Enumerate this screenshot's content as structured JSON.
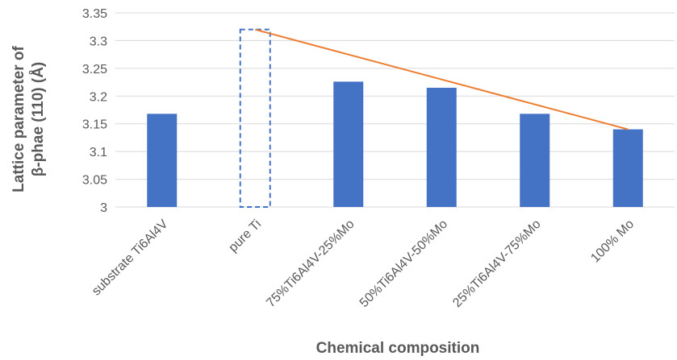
{
  "chart_data": {
    "type": "bar",
    "title": "",
    "xlabel": "Chemical composition",
    "ylabel_lines": [
      "Lattice parameter of",
      "β-phae (110) (Å)"
    ],
    "categories": [
      "substrate Ti6Al4V",
      "pure Ti",
      "75%Ti6Al4V-25%Mo",
      "50%Ti6Al4V-50%Mo",
      "25%Ti6Al4V-75%Mo",
      "100% Mo"
    ],
    "values": [
      3.168,
      3.32,
      3.226,
      3.215,
      3.168,
      3.14
    ],
    "bar_styles": [
      "solid",
      "dashed",
      "solid",
      "solid",
      "solid",
      "solid"
    ],
    "trend_line": {
      "from_category": "pure Ti",
      "from_value": 3.32,
      "to_category": "100% Mo",
      "to_value": 3.14
    },
    "ylim": [
      3,
      3.35
    ],
    "yticks": [
      "3",
      "3.05",
      "3.1",
      "3.15",
      "3.2",
      "3.25",
      "3.3",
      "3.35"
    ],
    "grid": true,
    "colors": {
      "bar": "#4472C4",
      "dashed_outline": "#4472C4",
      "trend": "#ED7D31",
      "grid": "#D9D9D9"
    }
  }
}
